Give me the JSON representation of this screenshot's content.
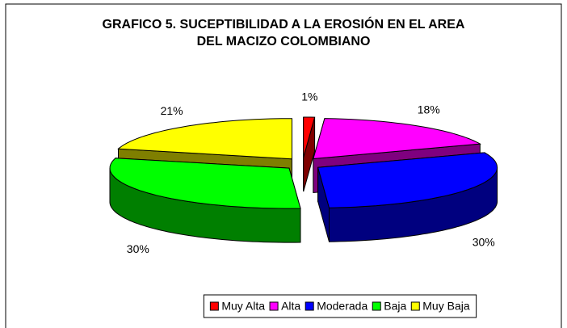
{
  "chart_data": {
    "type": "pie3d",
    "title": "GRAFICO 5.  SUCEPTIBILIDAD A LA EROSIÓN EN EL AREA DEL MACIZO COLOMBIANO",
    "categories": [
      "Muy Alta",
      "Alta",
      "Moderada",
      "Baja",
      "Muy Baja"
    ],
    "values": [
      1,
      18,
      30,
      30,
      21
    ],
    "value_labels": [
      "1%",
      "18%",
      "30%",
      "30%",
      "21%"
    ],
    "colors": [
      "#ff0000",
      "#ff00ff",
      "#0000ff",
      "#00ff00",
      "#ffff00"
    ],
    "legend": "bottom"
  }
}
